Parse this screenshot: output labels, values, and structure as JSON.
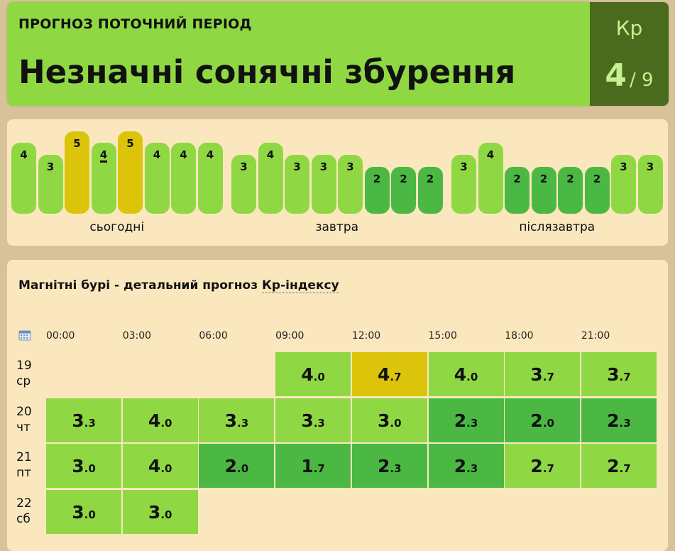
{
  "header": {
    "subtitle": "ПРОГНОЗ ПОТОЧНИЙ ПЕРІОД",
    "title": "Незначні сонячні збурення",
    "kp_label": "Кр",
    "kp_value": "4",
    "kp_max": "/ 9"
  },
  "bars": {
    "current_index": 3,
    "days": [
      {
        "label": "сьогодні",
        "values": [
          4,
          3,
          5,
          4,
          5,
          4,
          4,
          4
        ]
      },
      {
        "label": "завтра",
        "values": [
          3,
          4,
          3,
          3,
          3,
          2,
          2,
          2
        ]
      },
      {
        "label": "післязавтра",
        "values": [
          3,
          4,
          2,
          2,
          2,
          2,
          3,
          3
        ]
      }
    ]
  },
  "forecast": {
    "title_prefix": "Магнітні бурі - детальний прогноз ",
    "title_link": "Кр-індексу",
    "calendar_icon": "calendar-icon",
    "times": [
      "00:00",
      "03:00",
      "06:00",
      "09:00",
      "12:00",
      "15:00",
      "18:00",
      "21:00"
    ],
    "rows": [
      {
        "day": "19",
        "weekday": "ср",
        "values": [
          null,
          null,
          null,
          "4.0",
          "4.7",
          "4.0",
          "3.7",
          "3.7"
        ]
      },
      {
        "day": "20",
        "weekday": "чт",
        "values": [
          "3.3",
          "4.0",
          "3.3",
          "3.3",
          "3.0",
          "2.3",
          "2.0",
          "2.3"
        ]
      },
      {
        "day": "21",
        "weekday": "пт",
        "values": [
          "3.0",
          "4.0",
          "2.0",
          "1.7",
          "2.3",
          "2.3",
          "2.7",
          "2.7"
        ]
      },
      {
        "day": "22",
        "weekday": "сб",
        "values": [
          "3.0",
          "3.0",
          null,
          null,
          null,
          null,
          null,
          null
        ]
      }
    ]
  },
  "colors": {
    "level_2": "#4bb843",
    "level_3_4": "#8fd843",
    "level_5": "#dcc40a",
    "kp_box": "#4a6a1d"
  }
}
